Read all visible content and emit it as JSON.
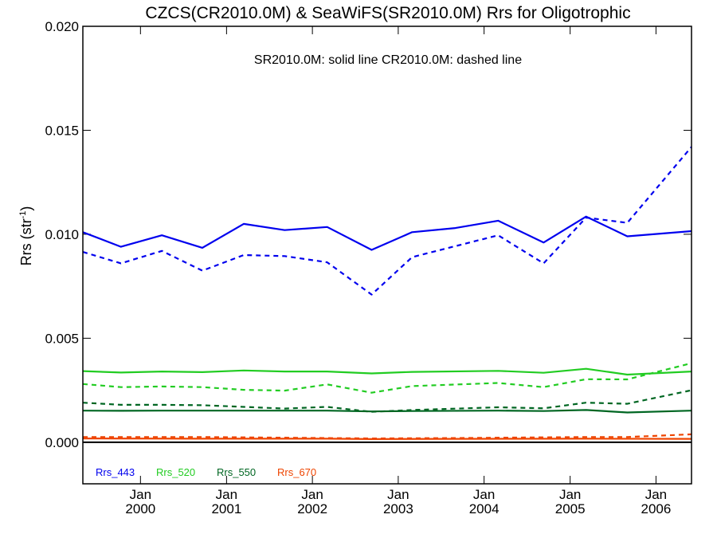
{
  "chart_data": {
    "type": "line",
    "title": "CZCS(CR2010.0M) & SeaWiFS(SR2010.0M)  Rrs for Oligotrophic",
    "annotation": "SR2010.0M: solid line   CR2010.0M: dashed line",
    "ylabel": "Rrs (str",
    "ylabel_sup": "-1",
    "ylabel_close": ")",
    "ylim": [
      -0.002,
      0.02
    ],
    "yticks": [
      "0.000",
      "0.005",
      "0.010",
      "0.015",
      "0.020"
    ],
    "ytick_values": [
      0.0,
      0.005,
      0.01,
      0.015,
      0.02
    ],
    "xlim": [
      "1999-05-01",
      "2006-06-01"
    ],
    "xticks": [
      {
        "month": "Jan",
        "year": "2000",
        "date": "2000-01-01"
      },
      {
        "month": "Jan",
        "year": "2001",
        "date": "2001-01-01"
      },
      {
        "month": "Jan",
        "year": "2002",
        "date": "2002-01-01"
      },
      {
        "month": "Jan",
        "year": "2003",
        "date": "2003-01-01"
      },
      {
        "month": "Jan",
        "year": "2004",
        "date": "2004-01-01"
      },
      {
        "month": "Jan",
        "year": "2005",
        "date": "2005-01-01"
      },
      {
        "month": "Jan",
        "year": "2006",
        "date": "2006-01-01"
      }
    ],
    "legend_placement": "bottom-left",
    "zero_line": 0.0,
    "series": [
      {
        "name": "Rrs_443",
        "color": "#0000ee",
        "style": "solid",
        "x": [
          "1999-05-01",
          "1999-10-10",
          "2000-04-01",
          "2000-09-20",
          "2001-03-15",
          "2001-09-05",
          "2002-03-05",
          "2002-09-10",
          "2003-03-01",
          "2003-09-01",
          "2004-03-01",
          "2004-09-10",
          "2005-03-10",
          "2005-09-01",
          "2006-06-01"
        ],
        "y": [
          0.0101,
          0.0094,
          0.00995,
          0.00935,
          0.0105,
          0.0102,
          0.01035,
          0.00925,
          0.0101,
          0.0103,
          0.01065,
          0.0096,
          0.01085,
          0.0099,
          0.01015
        ]
      },
      {
        "name": "Rrs_443",
        "color": "#0000ee",
        "style": "dashed",
        "x": [
          "1999-05-01",
          "1999-10-10",
          "2000-04-01",
          "2000-09-20",
          "2001-03-15",
          "2001-09-05",
          "2002-03-05",
          "2002-09-10",
          "2003-03-01",
          "2004-03-01",
          "2004-09-10",
          "2005-03-10",
          "2005-09-01",
          "2006-06-01"
        ],
        "y": [
          0.00915,
          0.0086,
          0.0092,
          0.00825,
          0.009,
          0.00895,
          0.00865,
          0.0071,
          0.0089,
          0.00995,
          0.0086,
          0.0108,
          0.01055,
          0.0142
        ]
      },
      {
        "name": "Rrs_520",
        "color": "#22cc22",
        "style": "solid",
        "x": [
          "1999-05-01",
          "1999-10-10",
          "2000-04-01",
          "2000-09-20",
          "2001-03-15",
          "2001-09-05",
          "2002-03-05",
          "2002-09-10",
          "2003-03-01",
          "2004-03-01",
          "2004-09-10",
          "2005-03-10",
          "2005-09-01",
          "2006-06-01"
        ],
        "y": [
          0.00342,
          0.00335,
          0.0034,
          0.00337,
          0.00345,
          0.0034,
          0.0034,
          0.00331,
          0.00338,
          0.00343,
          0.00334,
          0.00353,
          0.00325,
          0.0034
        ]
      },
      {
        "name": "Rrs_520",
        "color": "#22cc22",
        "style": "dashed",
        "x": [
          "1999-05-01",
          "1999-10-10",
          "2000-04-01",
          "2000-09-20",
          "2001-03-15",
          "2001-09-05",
          "2002-03-05",
          "2002-09-10",
          "2003-03-01",
          "2004-03-01",
          "2004-09-10",
          "2005-03-10",
          "2005-09-01",
          "2006-06-01"
        ],
        "y": [
          0.0028,
          0.00265,
          0.00268,
          0.00265,
          0.00252,
          0.00248,
          0.00278,
          0.00238,
          0.0027,
          0.00285,
          0.00265,
          0.00303,
          0.00302,
          0.0038
        ]
      },
      {
        "name": "Rrs_550",
        "color": "#006622",
        "style": "solid",
        "x": [
          "1999-05-01",
          "1999-10-10",
          "2000-04-01",
          "2000-09-20",
          "2001-03-15",
          "2001-09-05",
          "2002-03-05",
          "2002-09-10",
          "2003-03-01",
          "2004-03-01",
          "2004-09-10",
          "2005-03-10",
          "2005-09-01",
          "2006-06-01"
        ],
        "y": [
          0.00152,
          0.00151,
          0.00152,
          0.00152,
          0.00152,
          0.00152,
          0.00152,
          0.00148,
          0.0015,
          0.00152,
          0.0015,
          0.00155,
          0.00143,
          0.00152
        ]
      },
      {
        "name": "Rrs_550",
        "color": "#006622",
        "style": "dashed",
        "x": [
          "1999-05-01",
          "1999-10-10",
          "2000-04-01",
          "2000-09-20",
          "2001-03-15",
          "2001-09-05",
          "2002-03-05",
          "2002-09-10",
          "2003-03-01",
          "2004-03-01",
          "2004-09-10",
          "2005-03-10",
          "2005-09-01",
          "2006-06-01"
        ],
        "y": [
          0.0019,
          0.0018,
          0.0018,
          0.00178,
          0.0017,
          0.00162,
          0.0017,
          0.00146,
          0.00155,
          0.00168,
          0.00163,
          0.0019,
          0.00185,
          0.0025
        ]
      },
      {
        "name": "Rrs_670",
        "color": "#ee4400",
        "style": "solid",
        "x": [
          "1999-05-01",
          "2000-09-20",
          "2002-03-05",
          "2002-09-10",
          "2003-09-01",
          "2005-03-10",
          "2006-06-01"
        ],
        "y": [
          0.00018,
          0.00017,
          0.00017,
          0.00015,
          0.00016,
          0.00017,
          0.00016
        ]
      },
      {
        "name": "Rrs_670",
        "color": "#ee4400",
        "style": "dashed",
        "x": [
          "1999-05-01",
          "2000-09-20",
          "2002-03-05",
          "2002-09-10",
          "2003-09-01",
          "2005-03-10",
          "2005-09-01",
          "2006-06-01"
        ],
        "y": [
          0.00025,
          0.00025,
          0.0002,
          0.00018,
          0.0002,
          0.00025,
          0.00025,
          0.00038
        ]
      }
    ],
    "legend": [
      {
        "label": "Rrs_443",
        "color": "#0000ee"
      },
      {
        "label": "Rrs_520",
        "color": "#22cc22"
      },
      {
        "label": "Rrs_550",
        "color": "#006622"
      },
      {
        "label": "Rrs_670",
        "color": "#ee4400"
      }
    ]
  }
}
